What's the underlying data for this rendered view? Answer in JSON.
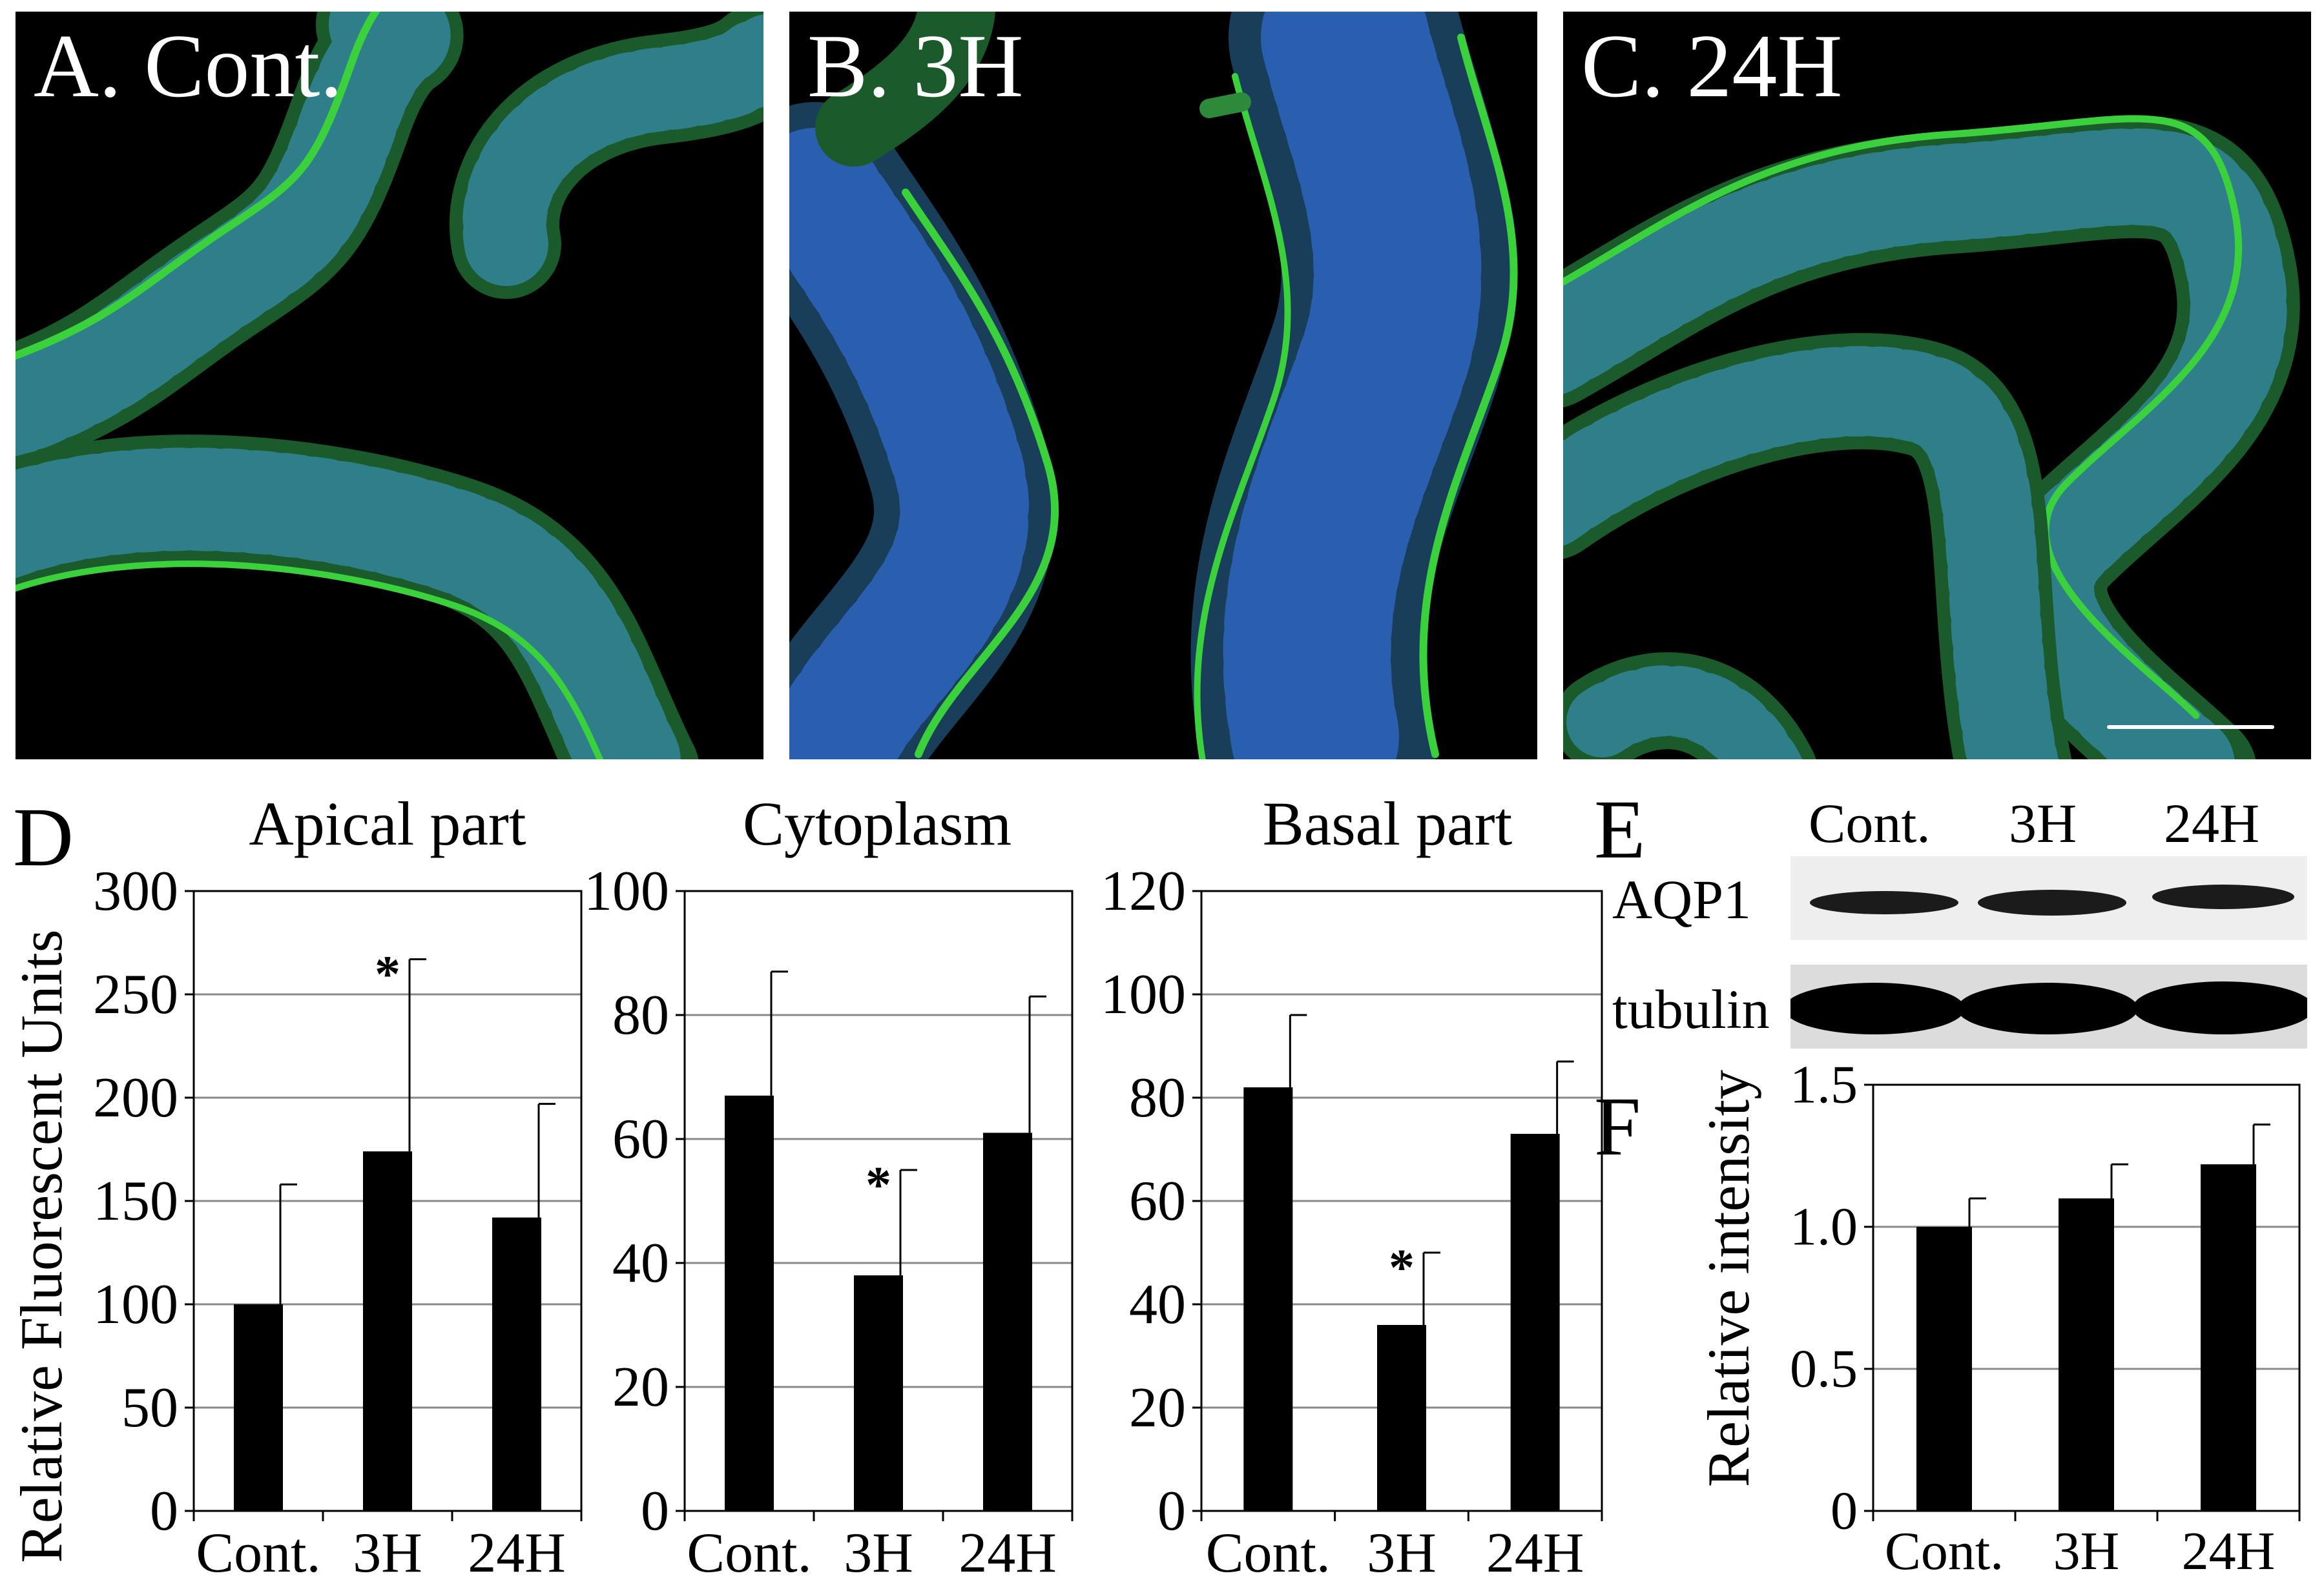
{
  "figure": {
    "micrographs": [
      {
        "label": "A. Cont."
      },
      {
        "label": "B. 3H"
      },
      {
        "label": "C. 24H"
      }
    ],
    "panel_d": {
      "letter": "D",
      "ylabel": "Relative Fluorescent Units"
    },
    "panel_e": {
      "letter": "E",
      "columns": [
        "Cont.",
        "3H",
        "24H"
      ],
      "rows": [
        "AQP1",
        "tubulin"
      ]
    },
    "panel_f": {
      "letter": "F"
    },
    "colors": {
      "bar": "#000000",
      "stain_membrane": "#39d43a",
      "stain_nuclei": "#1f4dff",
      "background": "#000000"
    }
  },
  "chart_data": [
    {
      "type": "bar",
      "title": "Apical part",
      "categories": [
        "Cont.",
        "3H",
        "24H"
      ],
      "values": [
        100,
        174,
        142
      ],
      "errors": [
        58,
        93,
        55
      ],
      "significant": [
        false,
        true,
        false
      ],
      "ylabel": "Relative Fluorescent Units",
      "ylim": [
        0,
        300
      ],
      "ticks": [
        "0",
        "50",
        "100",
        "150",
        "200",
        "250",
        "300"
      ],
      "grid": true
    },
    {
      "type": "bar",
      "title": "Cytoplasm",
      "categories": [
        "Cont.",
        "3H",
        "24H"
      ],
      "values": [
        67,
        38,
        61
      ],
      "errors": [
        20,
        17,
        22
      ],
      "significant": [
        false,
        true,
        false
      ],
      "ylim": [
        0,
        100
      ],
      "ticks": [
        "0",
        "20",
        "40",
        "60",
        "80",
        "100"
      ],
      "grid": true
    },
    {
      "type": "bar",
      "title": "Basal part",
      "categories": [
        "Cont.",
        "3H",
        "24H"
      ],
      "values": [
        82,
        36,
        73
      ],
      "errors": [
        14,
        14,
        14
      ],
      "significant": [
        false,
        true,
        false
      ],
      "ylim": [
        0,
        120
      ],
      "ticks": [
        "0",
        "20",
        "40",
        "60",
        "80",
        "100",
        "120"
      ],
      "grid": true
    },
    {
      "type": "bar",
      "title": "",
      "categories": [
        "Cont.",
        "3H",
        "24H"
      ],
      "values": [
        1.0,
        1.1,
        1.22
      ],
      "errors": [
        0.1,
        0.12,
        0.14
      ],
      "significant": [
        false,
        false,
        false
      ],
      "ylabel": "Relative intensity",
      "ylim": [
        0,
        1.5
      ],
      "ticks": [
        "0",
        "0.5",
        "1.0",
        "1.5"
      ],
      "grid": true
    }
  ]
}
